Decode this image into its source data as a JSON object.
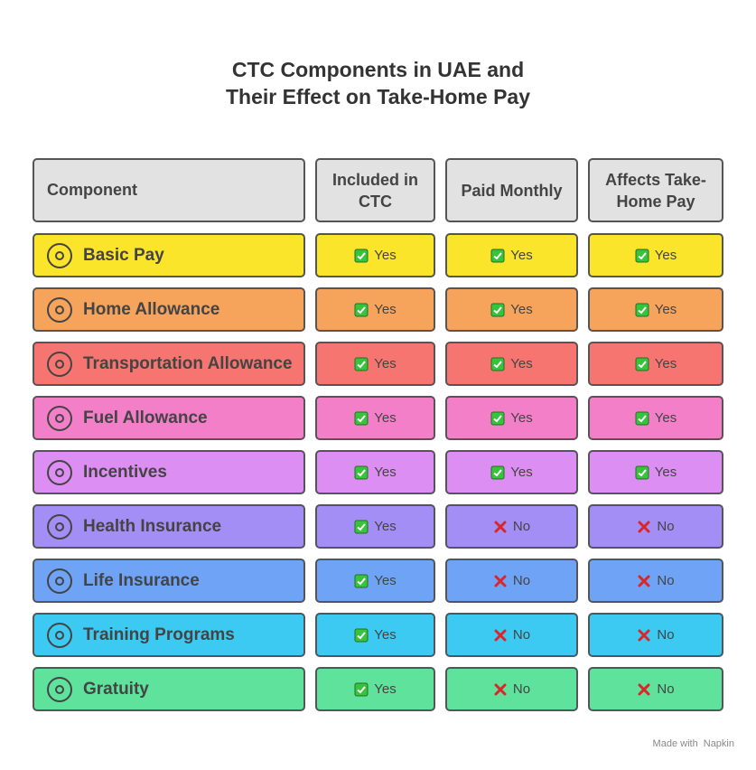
{
  "title_lines": [
    "CTC Components in UAE and",
    "Their Effect on Take-Home Pay"
  ],
  "table": {
    "headers": [
      "Component",
      "Included in CTC",
      "Paid Monthly",
      "Affects Take-Home Pay"
    ],
    "rows": [
      {
        "name": "Basic Pay",
        "color": "#fbe52a",
        "values": [
          "Yes",
          "Yes",
          "Yes"
        ]
      },
      {
        "name": "Home Allowance",
        "color": "#f6a35c",
        "values": [
          "Yes",
          "Yes",
          "Yes"
        ]
      },
      {
        "name": "Transportation Allowance",
        "color": "#f77570",
        "values": [
          "Yes",
          "Yes",
          "Yes"
        ]
      },
      {
        "name": "Fuel Allowance",
        "color": "#f47fc9",
        "values": [
          "Yes",
          "Yes",
          "Yes"
        ]
      },
      {
        "name": "Incentives",
        "color": "#dc8ef2",
        "values": [
          "Yes",
          "Yes",
          "Yes"
        ]
      },
      {
        "name": "Health Insurance",
        "color": "#a28ef4",
        "values": [
          "Yes",
          "No",
          "No"
        ]
      },
      {
        "name": "Life Insurance",
        "color": "#6fa3f5",
        "values": [
          "Yes",
          "No",
          "No"
        ]
      },
      {
        "name": "Training Programs",
        "color": "#3ccaf2",
        "values": [
          "Yes",
          "No",
          "No"
        ]
      },
      {
        "name": "Gratuity",
        "color": "#5fe29c",
        "values": [
          "Yes",
          "No",
          "No"
        ]
      }
    ]
  },
  "footer": {
    "text": "Made with",
    "brand": "Napkin"
  }
}
